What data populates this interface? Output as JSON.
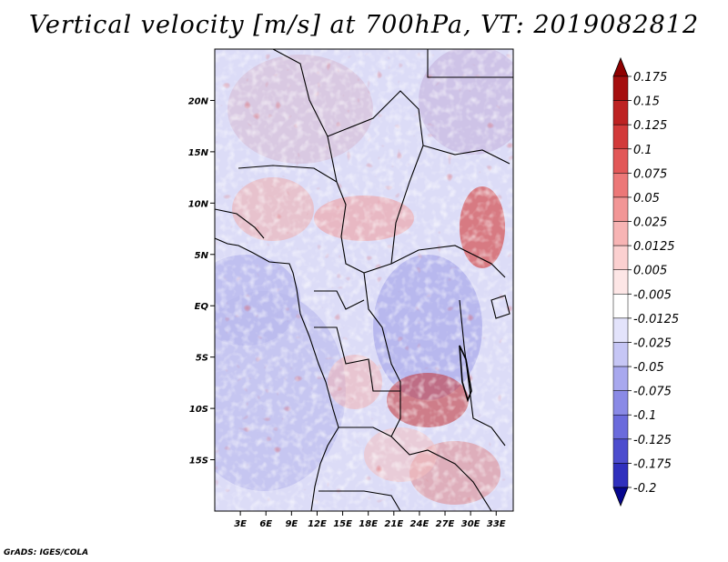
{
  "title": "Vertical velocity [m/s] at 700hPa, VT: 2019082812",
  "credit": "GrADS: IGES/COLA",
  "map": {
    "type": "filled-contour-map",
    "variable": "Vertical velocity",
    "units": "m/s",
    "level": "700hPa",
    "valid_time": "2019082812",
    "lon_range": [
      0,
      35
    ],
    "lat_range": [
      -20,
      25
    ],
    "lon_ticks": [
      {
        "value": 3,
        "label": "3E"
      },
      {
        "value": 6,
        "label": "6E"
      },
      {
        "value": 9,
        "label": "9E"
      },
      {
        "value": 12,
        "label": "12E"
      },
      {
        "value": 15,
        "label": "15E"
      },
      {
        "value": 18,
        "label": "18E"
      },
      {
        "value": 21,
        "label": "21E"
      },
      {
        "value": 24,
        "label": "24E"
      },
      {
        "value": 27,
        "label": "27E"
      },
      {
        "value": 30,
        "label": "30E"
      },
      {
        "value": 33,
        "label": "33E"
      }
    ],
    "lat_ticks": [
      {
        "value": 20,
        "label": "20N"
      },
      {
        "value": 15,
        "label": "15N"
      },
      {
        "value": 10,
        "label": "10N"
      },
      {
        "value": 5,
        "label": "5N"
      },
      {
        "value": 0,
        "label": "EQ"
      },
      {
        "value": -5,
        "label": "5S"
      },
      {
        "value": -10,
        "label": "10S"
      },
      {
        "value": -15,
        "label": "15S"
      }
    ]
  },
  "legend": {
    "levels": [
      {
        "label": "0.175",
        "color": "#a50f0f"
      },
      {
        "label": "0.15",
        "color": "#bd2222"
      },
      {
        "label": "0.125",
        "color": "#d23a3a"
      },
      {
        "label": "0.1",
        "color": "#e25858"
      },
      {
        "label": "0.075",
        "color": "#ec7878"
      },
      {
        "label": "0.05",
        "color": "#f29696"
      },
      {
        "label": "0.025",
        "color": "#f7b4b4"
      },
      {
        "label": "0.0125",
        "color": "#fbd0d0"
      },
      {
        "label": "0.005",
        "color": "#fde6e6"
      },
      {
        "label": "-0.005",
        "color": "#ffffff"
      },
      {
        "label": "-0.0125",
        "color": "#e3e3fb"
      },
      {
        "label": "-0.025",
        "color": "#c6c6f5"
      },
      {
        "label": "-0.05",
        "color": "#a8a8ee"
      },
      {
        "label": "-0.075",
        "color": "#8a8ae6"
      },
      {
        "label": "-0.1",
        "color": "#6b6bdc"
      },
      {
        "label": "-0.125",
        "color": "#4d4dce"
      },
      {
        "label": "-0.175",
        "color": "#3030bd"
      },
      {
        "label": "-0.2",
        "color": "#1818a8"
      }
    ],
    "top_color": "#8e0000",
    "bottom_color": "#06068f"
  }
}
